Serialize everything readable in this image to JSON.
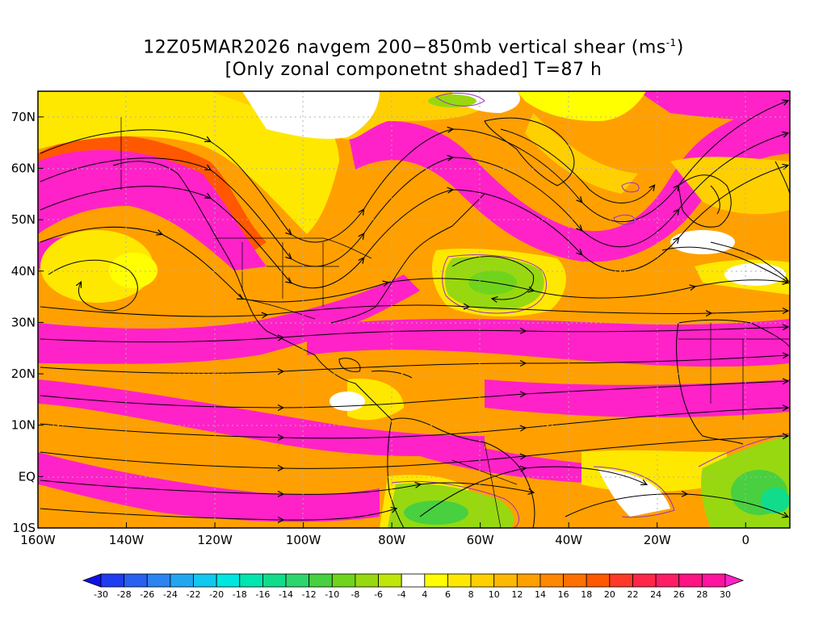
{
  "title": {
    "line1_prefix": "12Z05MAR2026 navgem 200−850mb vertical shear (ms",
    "line1_sup": "-1",
    "line1_suffix": ")",
    "line2": "[Only zonal componetnt shaded] T=87 h"
  },
  "map": {
    "lon_range": [
      -160,
      10
    ],
    "lat_range": [
      -10,
      75
    ],
    "lat_ticks": [
      {
        "value": 70,
        "label": "70N"
      },
      {
        "value": 60,
        "label": "60N"
      },
      {
        "value": 50,
        "label": "50N"
      },
      {
        "value": 40,
        "label": "40N"
      },
      {
        "value": 30,
        "label": "30N"
      },
      {
        "value": 20,
        "label": "20N"
      },
      {
        "value": 10,
        "label": "10N"
      },
      {
        "value": 0,
        "label": "EQ"
      },
      {
        "value": -10,
        "label": "10S"
      }
    ],
    "lon_ticks": [
      {
        "value": -160,
        "label": "160W"
      },
      {
        "value": -140,
        "label": "140W"
      },
      {
        "value": -120,
        "label": "120W"
      },
      {
        "value": -100,
        "label": "100W"
      },
      {
        "value": -80,
        "label": "80W"
      },
      {
        "value": -60,
        "label": "60W"
      },
      {
        "value": -40,
        "label": "40W"
      },
      {
        "value": -20,
        "label": "20W"
      },
      {
        "value": 0,
        "label": "0"
      }
    ],
    "grid": true,
    "projection": "cylindrical equidistant"
  },
  "colorbar": {
    "levels": [
      "-30",
      "-28",
      "-26",
      "-24",
      "-22",
      "-20",
      "-18",
      "-16",
      "-14",
      "-12",
      "-10",
      "-8",
      "-6",
      "-4",
      "4",
      "6",
      "8",
      "10",
      "12",
      "14",
      "16",
      "18",
      "20",
      "22",
      "24",
      "26",
      "28",
      "30"
    ],
    "colors": [
      "#1010e6",
      "#1e3cf0",
      "#2860f0",
      "#2c84f0",
      "#22a6f0",
      "#10c8f0",
      "#00e6e0",
      "#00e6b0",
      "#10dc8c",
      "#2cd66e",
      "#48d040",
      "#70d41c",
      "#98d810",
      "#bfe60a",
      "#ffffff",
      "#ffff00",
      "#ffe800",
      "#ffd000",
      "#ffb800",
      "#ffa000",
      "#ff8800",
      "#ff7000",
      "#ff5800",
      "#ff3a28",
      "#ff2848",
      "#ff1e66",
      "#ff1484",
      "#ff14a0",
      "#ff22c8"
    ]
  }
}
